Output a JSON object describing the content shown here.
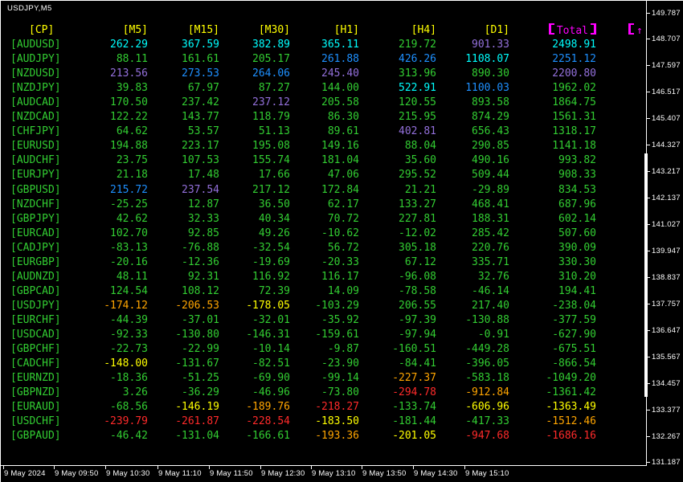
{
  "palette": {
    "green": "#32cd32",
    "aqua": "#00ffff",
    "blue": "#1e90ff",
    "purple": "#9370db",
    "yellow": "#ffff00",
    "orange": "#ffa500",
    "red": "#ff2a2a",
    "magenta": "#ff00ff",
    "axis_text": "#ffffff",
    "background": "#000000"
  },
  "window": {
    "title": "USDJPY,M5"
  },
  "table": {
    "headers": [
      "[CP]",
      "[M5]",
      "[M15]",
      "[M30]",
      "[H1]",
      "[H4]",
      "[D1]"
    ],
    "total_header": "Total",
    "arrow": "↑",
    "rows": [
      {
        "pair": "[AUDUSD]",
        "values": [
          "262.29",
          "367.59",
          "382.89",
          "365.11",
          "219.72",
          "901.33",
          "2498.91"
        ],
        "colors": [
          "aqua",
          "aqua",
          "aqua",
          "aqua",
          "green",
          "purple",
          "aqua"
        ]
      },
      {
        "pair": "[AUDJPY]",
        "values": [
          "88.11",
          "161.61",
          "205.17",
          "261.88",
          "426.26",
          "1108.07",
          "2251.12"
        ],
        "colors": [
          "green",
          "green",
          "green",
          "blue",
          "blue",
          "aqua",
          "blue"
        ]
      },
      {
        "pair": "[NZDUSD]",
        "values": [
          "213.56",
          "273.53",
          "264.06",
          "245.40",
          "313.96",
          "890.30",
          "2200.80"
        ],
        "colors": [
          "purple",
          "blue",
          "blue",
          "purple",
          "green",
          "green",
          "purple"
        ]
      },
      {
        "pair": "[NZDJPY]",
        "values": [
          "39.83",
          "67.97",
          "87.27",
          "144.00",
          "522.91",
          "1100.03",
          "1962.02"
        ],
        "colors": [
          "green",
          "green",
          "green",
          "green",
          "aqua",
          "blue",
          "green"
        ]
      },
      {
        "pair": "[AUDCAD]",
        "values": [
          "170.50",
          "237.42",
          "237.12",
          "205.58",
          "120.55",
          "893.58",
          "1864.75"
        ],
        "colors": [
          "green",
          "green",
          "purple",
          "green",
          "green",
          "green",
          "green"
        ]
      },
      {
        "pair": "[NZDCAD]",
        "values": [
          "122.22",
          "143.77",
          "118.79",
          "86.30",
          "215.95",
          "874.29",
          "1561.31"
        ],
        "colors": [
          "green",
          "green",
          "green",
          "green",
          "green",
          "green",
          "green"
        ]
      },
      {
        "pair": "[CHFJPY]",
        "values": [
          "64.62",
          "53.57",
          "51.13",
          "89.61",
          "402.81",
          "656.43",
          "1318.17"
        ],
        "colors": [
          "green",
          "green",
          "green",
          "green",
          "purple",
          "green",
          "green"
        ]
      },
      {
        "pair": "[EURUSD]",
        "values": [
          "194.88",
          "223.17",
          "195.08",
          "149.16",
          "88.04",
          "290.85",
          "1141.18"
        ],
        "colors": [
          "green",
          "green",
          "green",
          "green",
          "green",
          "green",
          "green"
        ]
      },
      {
        "pair": "[AUDCHF]",
        "values": [
          "23.75",
          "107.53",
          "155.74",
          "181.04",
          "35.60",
          "490.16",
          "993.82"
        ],
        "colors": [
          "green",
          "green",
          "green",
          "green",
          "green",
          "green",
          "green"
        ]
      },
      {
        "pair": "[EURJPY]",
        "values": [
          "21.18",
          "17.48",
          "17.66",
          "47.06",
          "295.52",
          "509.44",
          "908.33"
        ],
        "colors": [
          "green",
          "green",
          "green",
          "green",
          "green",
          "green",
          "green"
        ]
      },
      {
        "pair": "[GBPUSD]",
        "values": [
          "215.72",
          "237.54",
          "217.12",
          "172.84",
          "21.21",
          "-29.89",
          "834.53"
        ],
        "colors": [
          "blue",
          "purple",
          "green",
          "green",
          "green",
          "green",
          "green"
        ]
      },
      {
        "pair": "[NZDCHF]",
        "values": [
          "-25.25",
          "12.87",
          "36.50",
          "62.17",
          "133.27",
          "468.41",
          "687.96"
        ],
        "colors": [
          "green",
          "green",
          "green",
          "green",
          "green",
          "green",
          "green"
        ]
      },
      {
        "pair": "[GBPJPY]",
        "values": [
          "42.62",
          "32.33",
          "40.34",
          "70.72",
          "227.81",
          "188.31",
          "602.14"
        ],
        "colors": [
          "green",
          "green",
          "green",
          "green",
          "green",
          "green",
          "green"
        ]
      },
      {
        "pair": "[EURCAD]",
        "values": [
          "102.70",
          "92.85",
          "49.26",
          "-10.62",
          "-12.02",
          "285.42",
          "507.60"
        ],
        "colors": [
          "green",
          "green",
          "green",
          "green",
          "green",
          "green",
          "green"
        ]
      },
      {
        "pair": "[CADJPY]",
        "values": [
          "-83.13",
          "-76.88",
          "-32.54",
          "56.72",
          "305.18",
          "220.76",
          "390.09"
        ],
        "colors": [
          "green",
          "green",
          "green",
          "green",
          "green",
          "green",
          "green"
        ]
      },
      {
        "pair": "[EURGBP]",
        "values": [
          "-20.16",
          "-12.36",
          "-19.69",
          "-20.33",
          "67.12",
          "335.71",
          "330.30"
        ],
        "colors": [
          "green",
          "green",
          "green",
          "green",
          "green",
          "green",
          "green"
        ]
      },
      {
        "pair": "[AUDNZD]",
        "values": [
          "48.11",
          "92.31",
          "116.92",
          "116.17",
          "-96.08",
          "32.76",
          "310.20"
        ],
        "colors": [
          "green",
          "green",
          "green",
          "green",
          "green",
          "green",
          "green"
        ]
      },
      {
        "pair": "[GBPCAD]",
        "values": [
          "124.54",
          "108.12",
          "72.39",
          "14.09",
          "-78.58",
          "-46.14",
          "194.41"
        ],
        "colors": [
          "green",
          "green",
          "green",
          "green",
          "green",
          "green",
          "green"
        ]
      },
      {
        "pair": "[USDJPY]",
        "values": [
          "-174.12",
          "-206.53",
          "-178.05",
          "-103.29",
          "206.55",
          "217.40",
          "-238.04"
        ],
        "colors": [
          "orange",
          "orange",
          "yellow",
          "green",
          "green",
          "green",
          "green"
        ]
      },
      {
        "pair": "[EURCHF]",
        "values": [
          "-44.39",
          "-37.01",
          "-32.01",
          "-35.92",
          "-97.39",
          "-130.88",
          "-377.59"
        ],
        "colors": [
          "green",
          "green",
          "green",
          "green",
          "green",
          "green",
          "green"
        ]
      },
      {
        "pair": "[USDCAD]",
        "values": [
          "-92.33",
          "-130.80",
          "-146.31",
          "-159.61",
          "-97.94",
          "-0.91",
          "-627.90"
        ],
        "colors": [
          "green",
          "green",
          "green",
          "green",
          "green",
          "green",
          "green"
        ]
      },
      {
        "pair": "[GBPCHF]",
        "values": [
          "-22.73",
          "-22.99",
          "-10.14",
          "-9.87",
          "-160.51",
          "-449.28",
          "-675.51"
        ],
        "colors": [
          "green",
          "green",
          "green",
          "green",
          "green",
          "green",
          "green"
        ]
      },
      {
        "pair": "[CADCHF]",
        "values": [
          "-148.00",
          "-131.67",
          "-82.51",
          "-23.90",
          "-84.41",
          "-396.05",
          "-866.54"
        ],
        "colors": [
          "yellow",
          "green",
          "green",
          "green",
          "green",
          "green",
          "green"
        ]
      },
      {
        "pair": "[EURNZD]",
        "values": [
          "-18.36",
          "-51.25",
          "-69.90",
          "-99.14",
          "-227.37",
          "-583.18",
          "-1049.20"
        ],
        "colors": [
          "green",
          "green",
          "green",
          "green",
          "orange",
          "green",
          "green"
        ]
      },
      {
        "pair": "[GBPNZD]",
        "values": [
          "3.26",
          "-36.29",
          "-46.96",
          "-73.80",
          "-294.78",
          "-912.84",
          "-1361.42"
        ],
        "colors": [
          "green",
          "green",
          "green",
          "green",
          "red",
          "orange",
          "green"
        ]
      },
      {
        "pair": "[EURAUD]",
        "values": [
          "-68.56",
          "-146.19",
          "-189.76",
          "-218.27",
          "-133.74",
          "-606.96",
          "-1363.49"
        ],
        "colors": [
          "green",
          "yellow",
          "orange",
          "red",
          "green",
          "yellow",
          "yellow"
        ]
      },
      {
        "pair": "[USDCHF]",
        "values": [
          "-239.79",
          "-261.87",
          "-228.54",
          "-183.50",
          "-181.44",
          "-417.33",
          "-1512.46"
        ],
        "colors": [
          "red",
          "red",
          "red",
          "yellow",
          "green",
          "green",
          "orange"
        ]
      },
      {
        "pair": "[GBPAUD]",
        "values": [
          "-46.42",
          "-131.04",
          "-166.61",
          "-193.36",
          "-201.05",
          "-947.68",
          "-1686.16"
        ],
        "colors": [
          "green",
          "green",
          "green",
          "orange",
          "yellow",
          "red",
          "red"
        ]
      }
    ]
  },
  "price_axis": {
    "labels": [
      "149.787",
      "148.707",
      "147.597",
      "146.517",
      "145.407",
      "144.327",
      "143.217",
      "142.137",
      "141.027",
      "139.947",
      "138.837",
      "137.757",
      "136.647",
      "135.567",
      "134.457",
      "133.377",
      "132.267",
      "131.187"
    ]
  },
  "time_axis": {
    "labels": [
      "9 May 2024",
      "9 May 09:50",
      "9 May 10:30",
      "9 May 11:10",
      "9 May 11:50",
      "9 May 12:30",
      "9 May 13:10",
      "9 May 13:50",
      "9 May 14:30",
      "9 May 15:10"
    ]
  }
}
